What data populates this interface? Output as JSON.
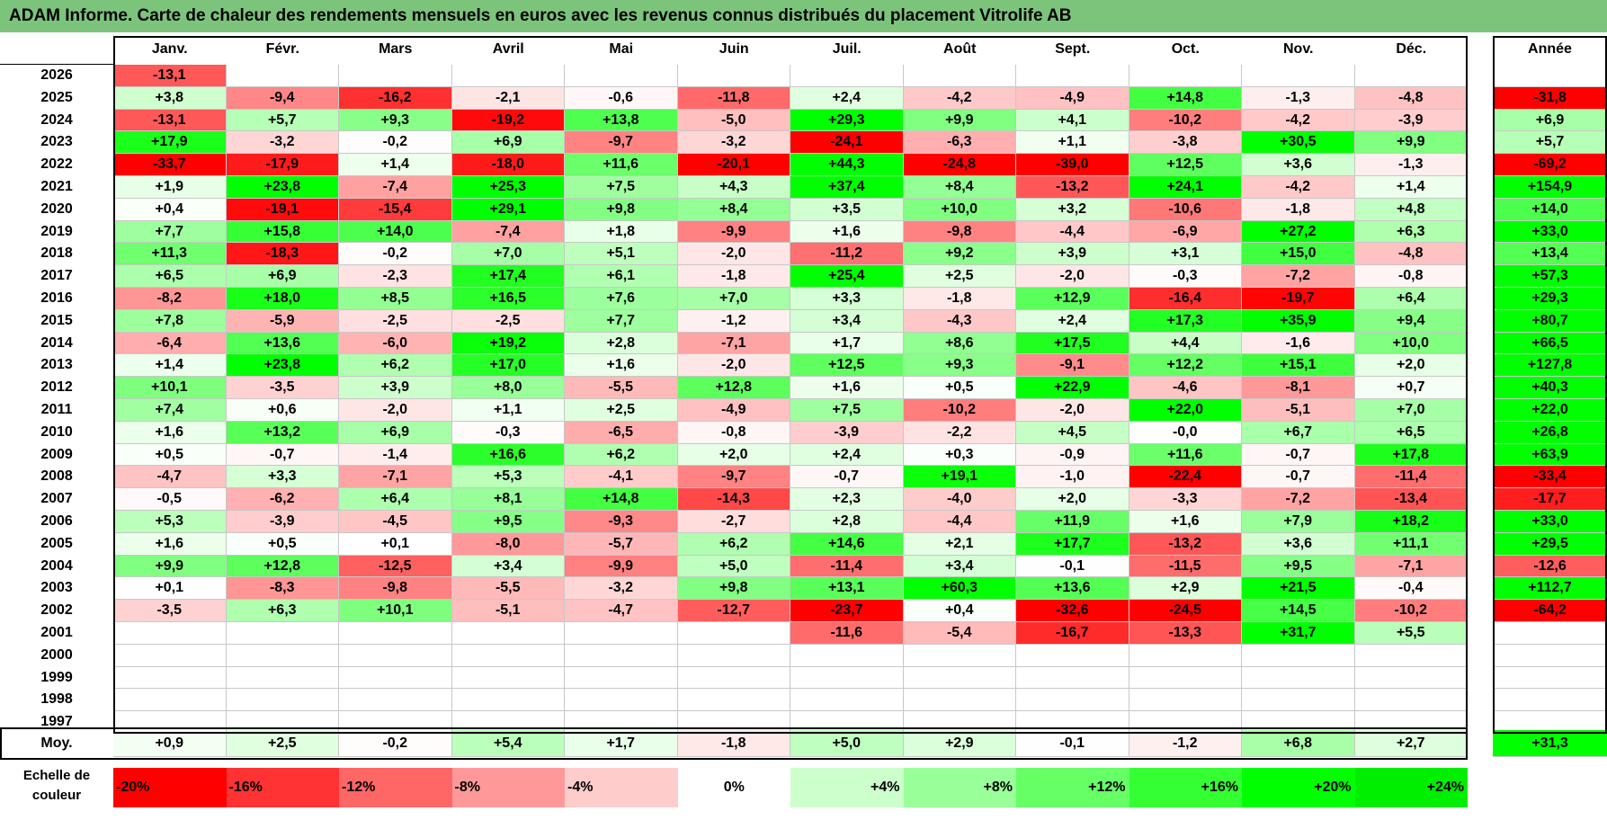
{
  "title": "ADAM Informe. Carte de chaleur des rendements mensuels en euros avec les revenus connus distribués du placement Vitrolife AB",
  "months": [
    "Janv.",
    "Févr.",
    "Mars",
    "Avril",
    "Mai",
    "Juin",
    "Juil.",
    "Août",
    "Sept.",
    "Oct.",
    "Nov.",
    "Déc."
  ],
  "year_header": "Année",
  "avg_label": "Moy.",
  "chart_data": {
    "type": "heatmap",
    "title": "ADAM Informe. Carte de chaleur des rendements mensuels en euros avec les revenus connus distribués du placement Vitrolife AB",
    "x_categories": [
      "Janv.",
      "Févr.",
      "Mars",
      "Avril",
      "Mai",
      "Juin",
      "Juil.",
      "Août",
      "Sept.",
      "Oct.",
      "Nov.",
      "Déc."
    ],
    "rows": [
      {
        "year": "2026",
        "values": [
          "-13,1",
          "",
          "",
          "",
          "",
          "",
          "",
          "",
          "",
          "",
          "",
          ""
        ],
        "annual": ""
      },
      {
        "year": "2025",
        "values": [
          "+3,8",
          "-9,4",
          "-16,2",
          "-2,1",
          "-0,6",
          "-11,8",
          "+2,4",
          "-4,2",
          "-4,9",
          "+14,8",
          "-1,3",
          "-4,8"
        ],
        "annual": "-31,8"
      },
      {
        "year": "2024",
        "values": [
          "-13,1",
          "+5,7",
          "+9,3",
          "-19,2",
          "+13,8",
          "-5,0",
          "+29,3",
          "+9,9",
          "+4,1",
          "-10,2",
          "-4,2",
          "-3,9"
        ],
        "annual": "+6,9"
      },
      {
        "year": "2023",
        "values": [
          "+17,9",
          "-3,2",
          "-0,2",
          "+6,9",
          "-9,7",
          "-3,2",
          "-24,1",
          "-6,3",
          "+1,1",
          "-3,8",
          "+30,5",
          "+9,9"
        ],
        "annual": "+5,7"
      },
      {
        "year": "2022",
        "values": [
          "-33,7",
          "-17,9",
          "+1,4",
          "-18,0",
          "+11,6",
          "-20,1",
          "+44,3",
          "-24,8",
          "-39,0",
          "+12,5",
          "+3,6",
          "-1,3"
        ],
        "annual": "-69,2"
      },
      {
        "year": "2021",
        "values": [
          "+1,9",
          "+23,8",
          "-7,4",
          "+25,3",
          "+7,5",
          "+4,3",
          "+37,4",
          "+8,4",
          "-13,2",
          "+24,1",
          "-4,2",
          "+1,4"
        ],
        "annual": "+154,9"
      },
      {
        "year": "2020",
        "values": [
          "+0,4",
          "-19,1",
          "-15,4",
          "+29,1",
          "+9,8",
          "+8,4",
          "+3,5",
          "+10,0",
          "+3,2",
          "-10,6",
          "-1,8",
          "+4,8"
        ],
        "annual": "+14,0"
      },
      {
        "year": "2019",
        "values": [
          "+7,7",
          "+15,8",
          "+14,0",
          "-7,4",
          "+1,8",
          "-9,9",
          "+1,6",
          "-9,8",
          "-4,4",
          "-6,9",
          "+27,2",
          "+6,3"
        ],
        "annual": "+33,0"
      },
      {
        "year": "2018",
        "values": [
          "+11,3",
          "-18,3",
          "-0,2",
          "+7,0",
          "+5,1",
          "-2,0",
          "-11,2",
          "+9,2",
          "+3,9",
          "+3,1",
          "+15,0",
          "-4,8"
        ],
        "annual": "+13,4"
      },
      {
        "year": "2017",
        "values": [
          "+6,5",
          "+6,9",
          "-2,3",
          "+17,4",
          "+6,1",
          "-1,8",
          "+25,4",
          "+2,5",
          "-2,0",
          "-0,3",
          "-7,2",
          "-0,8"
        ],
        "annual": "+57,3"
      },
      {
        "year": "2016",
        "values": [
          "-8,2",
          "+18,0",
          "+8,5",
          "+16,5",
          "+7,6",
          "+7,0",
          "+3,3",
          "-1,8",
          "+12,9",
          "-16,4",
          "-19,7",
          "+6,4"
        ],
        "annual": "+29,3"
      },
      {
        "year": "2015",
        "values": [
          "+7,8",
          "-5,9",
          "-2,5",
          "-2,5",
          "+7,7",
          "-1,2",
          "+3,4",
          "-4,3",
          "+2,4",
          "+17,3",
          "+35,9",
          "+9,4"
        ],
        "annual": "+80,7"
      },
      {
        "year": "2014",
        "values": [
          "-6,4",
          "+13,6",
          "-6,0",
          "+19,2",
          "+2,8",
          "-7,1",
          "+1,7",
          "+8,6",
          "+17,5",
          "+4,4",
          "-1,6",
          "+10,0"
        ],
        "annual": "+66,5"
      },
      {
        "year": "2013",
        "values": [
          "+1,4",
          "+23,8",
          "+6,2",
          "+17,0",
          "+1,6",
          "-2,0",
          "+12,5",
          "+9,3",
          "-9,1",
          "+12,2",
          "+15,1",
          "+2,0"
        ],
        "annual": "+127,8"
      },
      {
        "year": "2012",
        "values": [
          "+10,1",
          "-3,5",
          "+3,9",
          "+8,0",
          "-5,5",
          "+12,8",
          "+1,6",
          "+0,5",
          "+22,9",
          "-4,6",
          "-8,1",
          "+0,7"
        ],
        "annual": "+40,3"
      },
      {
        "year": "2011",
        "values": [
          "+7,4",
          "+0,6",
          "-2,0",
          "+1,1",
          "+2,5",
          "-4,9",
          "+7,5",
          "-10,2",
          "-2,0",
          "+22,0",
          "-5,1",
          "+7,0"
        ],
        "annual": "+22,0"
      },
      {
        "year": "2010",
        "values": [
          "+1,6",
          "+13,2",
          "+6,9",
          "-0,3",
          "-6,5",
          "-0,8",
          "-3,9",
          "-2,2",
          "+4,5",
          "-0,0",
          "+6,7",
          "+6,5"
        ],
        "annual": "+26,8"
      },
      {
        "year": "2009",
        "values": [
          "+0,5",
          "-0,7",
          "-1,4",
          "+16,6",
          "+6,2",
          "+2,0",
          "+2,4",
          "+0,3",
          "-0,9",
          "+11,6",
          "-0,7",
          "+17,8"
        ],
        "annual": "+63,9"
      },
      {
        "year": "2008",
        "values": [
          "-4,7",
          "+3,3",
          "-7,1",
          "+5,3",
          "-4,1",
          "-9,7",
          "-0,7",
          "+19,1",
          "-1,0",
          "-22,4",
          "-0,7",
          "-11,4"
        ],
        "annual": "-33,4"
      },
      {
        "year": "2007",
        "values": [
          "-0,5",
          "-6,2",
          "+6,4",
          "+8,1",
          "+14,8",
          "-14,3",
          "+2,3",
          "-4,0",
          "+2,0",
          "-3,3",
          "-7,2",
          "-13,4"
        ],
        "annual": "-17,7"
      },
      {
        "year": "2006",
        "values": [
          "+5,3",
          "-3,9",
          "-4,5",
          "+9,5",
          "-9,3",
          "-2,7",
          "+2,8",
          "-4,4",
          "+11,9",
          "+1,6",
          "+7,9",
          "+18,2"
        ],
        "annual": "+33,0"
      },
      {
        "year": "2005",
        "values": [
          "+1,6",
          "+0,5",
          "+0,1",
          "-8,0",
          "-5,7",
          "+6,2",
          "+14,6",
          "+2,1",
          "+17,7",
          "-13,2",
          "+3,6",
          "+11,1"
        ],
        "annual": "+29,5"
      },
      {
        "year": "2004",
        "values": [
          "+9,9",
          "+12,8",
          "-12,5",
          "+3,4",
          "-9,9",
          "+5,0",
          "-11,4",
          "+3,4",
          "-0,1",
          "-11,5",
          "+9,5",
          "-7,1"
        ],
        "annual": "-12,6"
      },
      {
        "year": "2003",
        "values": [
          "+0,1",
          "-8,3",
          "-9,8",
          "-5,5",
          "-3,2",
          "+9,8",
          "+13,1",
          "+60,3",
          "+13,6",
          "+2,9",
          "+21,5",
          "-0,4"
        ],
        "annual": "+112,7"
      },
      {
        "year": "2002",
        "values": [
          "-3,5",
          "+6,3",
          "+10,1",
          "-5,1",
          "-4,7",
          "-12,7",
          "-23,7",
          "+0,4",
          "-32,6",
          "-24,5",
          "+14,5",
          "-10,2"
        ],
        "annual": "-64,2"
      },
      {
        "year": "2001",
        "values": [
          "",
          "",
          "",
          "",
          "",
          "",
          "-11,6",
          "-5,4",
          "-16,7",
          "-13,3",
          "+31,7",
          "+5,5"
        ],
        "annual": ""
      },
      {
        "year": "2000",
        "values": [
          "",
          "",
          "",
          "",
          "",
          "",
          "",
          "",
          "",
          "",
          "",
          ""
        ],
        "annual": ""
      },
      {
        "year": "1999",
        "values": [
          "",
          "",
          "",
          "",
          "",
          "",
          "",
          "",
          "",
          "",
          "",
          ""
        ],
        "annual": ""
      },
      {
        "year": "1998",
        "values": [
          "",
          "",
          "",
          "",
          "",
          "",
          "",
          "",
          "",
          "",
          "",
          ""
        ],
        "annual": ""
      },
      {
        "year": "1997",
        "values": [
          "",
          "",
          "",
          "",
          "",
          "",
          "",
          "",
          "",
          "",
          "",
          ""
        ],
        "annual": ""
      }
    ],
    "average": {
      "values": [
        "+0,9",
        "+2,5",
        "-0,2",
        "+5,4",
        "+1,7",
        "-1,8",
        "+5,0",
        "+2,9",
        "-0,1",
        "-1,2",
        "+6,8",
        "+2,7"
      ],
      "annual": "+31,3"
    },
    "color_scale": {
      "label_lines": [
        "Echelle de",
        "couleur"
      ],
      "steps": [
        "-20%",
        "-16%",
        "-12%",
        "-8%",
        "-4%",
        "0%",
        "+4%",
        "+8%",
        "+12%",
        "+16%",
        "+20%",
        "+24%"
      ],
      "colors": [
        "#ff0000",
        "#ff3333",
        "#ff6666",
        "#ff9999",
        "#ffcccc",
        "#ffffff",
        "#ccffcc",
        "#99ff99",
        "#66ff66",
        "#33ff33",
        "#00ff00",
        "#00ee00"
      ]
    }
  }
}
